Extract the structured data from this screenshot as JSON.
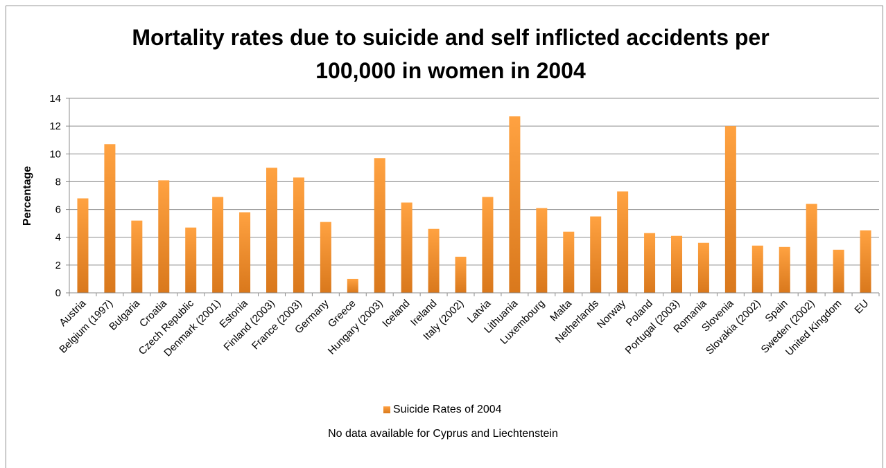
{
  "chart_data": {
    "type": "bar",
    "title_lines": [
      "Mortality rates due to suicide and self inflicted accidents per",
      "100,000 in women in 2004"
    ],
    "xlabel": "",
    "ylabel": "Percentage",
    "ylim": [
      0,
      14
    ],
    "yticks": [
      0,
      2,
      4,
      6,
      8,
      10,
      12,
      14
    ],
    "grid": true,
    "legend_position": "bottom",
    "categories": [
      "Austria",
      "Belgium (1997)",
      "Bulgaria",
      "Croatia",
      "Czech Republic",
      "Denmark (2001)",
      "Estonia",
      "Finland (2003)",
      "France (2003)",
      "Germany",
      "Greece",
      "Hungary (2003)",
      "Iceland",
      "Ireland",
      "Italy (2002)",
      "Latvia",
      "Lithuania",
      "Luxembourg",
      "Malta",
      "Netherlands",
      "Norway",
      "Poland",
      "Portugal (2003)",
      "Romania",
      "Slovenia",
      "Slovakia (2002)",
      "Spain",
      "Sweden (2002)",
      "United Kingdom",
      "EU"
    ],
    "series": [
      {
        "name": "Suicide Rates of 2004",
        "color": "#f0922e",
        "values": [
          6.8,
          10.7,
          5.2,
          8.1,
          4.7,
          6.9,
          5.8,
          9.0,
          8.3,
          5.1,
          1.0,
          9.7,
          6.5,
          4.6,
          2.6,
          6.9,
          12.7,
          6.1,
          4.4,
          5.5,
          7.3,
          4.3,
          4.1,
          3.6,
          12.0,
          3.4,
          3.3,
          6.4,
          3.1,
          4.5
        ]
      }
    ],
    "note": "No data available for Cyprus and Liechtenstein"
  }
}
